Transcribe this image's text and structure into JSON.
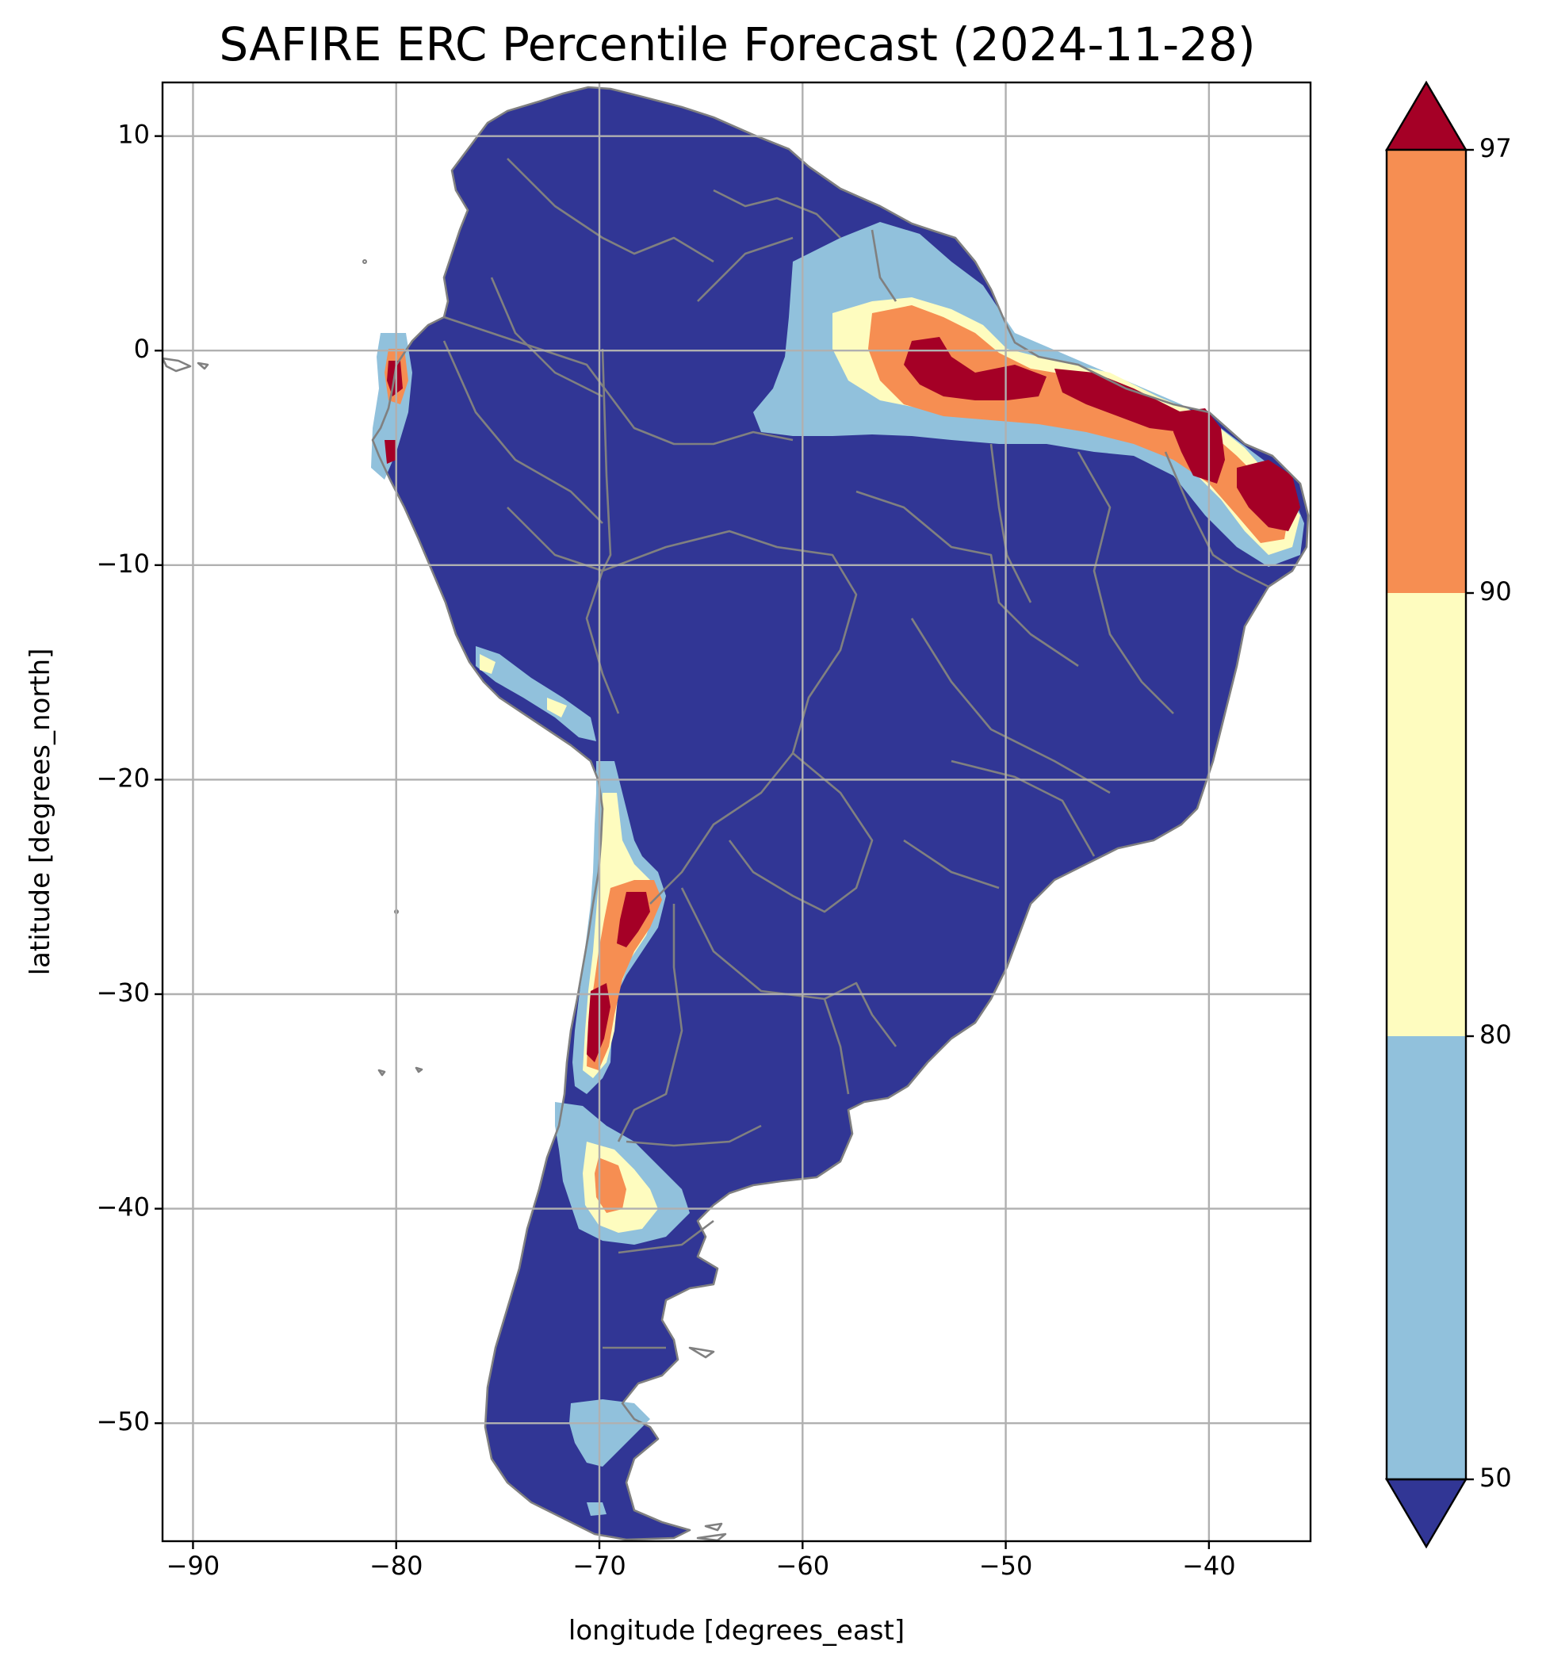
{
  "title": "SAFIRE ERC Percentile Forecast (2024-11-28)",
  "xlabel": "longitude [degrees_east]",
  "ylabel": "latitude [degrees_north]",
  "xticks": [
    "−90",
    "−80",
    "−70",
    "−60",
    "−50",
    "−40"
  ],
  "yticks": [
    "10",
    "0",
    "−10",
    "−20",
    "−30",
    "−40",
    "−50"
  ],
  "colorbar": {
    "ticks": [
      "97",
      "90",
      "80",
      "50"
    ],
    "colors": {
      "below_50": "#313695",
      "50_80": "#91c1dc",
      "80_90": "#fefcbf",
      "90_97": "#f68e52",
      "above_97": "#a50026"
    }
  },
  "chart_data": {
    "type": "map",
    "xlim": [
      -91.5,
      -35
    ],
    "ylim": [
      -55.5,
      12.5
    ],
    "grid": true,
    "legend_placement": "right colorbar",
    "levels": [
      50,
      80,
      90,
      97
    ],
    "extend": "both",
    "hotspots": [
      {
        "region": "northern Brazil / Amapa-Para coast",
        "max_class": "above_97"
      },
      {
        "region": "Maranhao-Ceara coast",
        "max_class": "above_97"
      },
      {
        "region": "Rio Grande do Norte / Paraiba",
        "max_class": "above_97"
      },
      {
        "region": "coastal Ecuador",
        "max_class": "above_97"
      },
      {
        "region": "central Chile / Andes",
        "max_class": "above_97"
      },
      {
        "region": "Neuquen, Argentina",
        "max_class": "90_97"
      },
      {
        "region": "southern Peru coast",
        "max_class": "80_90"
      },
      {
        "region": "southern Patagonia",
        "max_class": "50_80"
      }
    ]
  }
}
